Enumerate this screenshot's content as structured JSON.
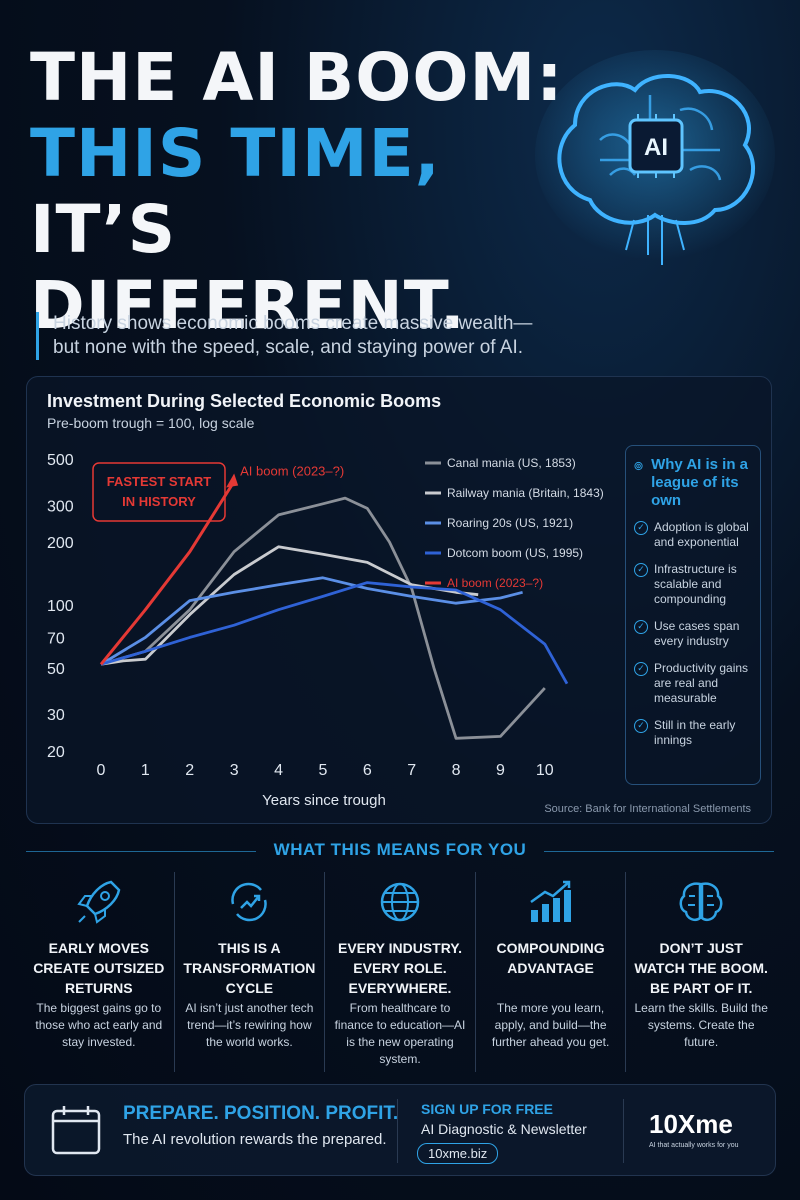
{
  "headline": {
    "line1": "THE AI BOOM:",
    "line2": "THIS TIME,",
    "line3": "IT’S DIFFERENT."
  },
  "brain_label": "AI",
  "subtitle": {
    "line1": "History shows economic booms create massive wealth—",
    "line2": "but none with the speed, scale, and staying power of AI."
  },
  "chart_data": {
    "type": "line",
    "title": "Investment During Selected Economic Booms",
    "subtitle": "Pre-boom trough = 100, log scale",
    "xlabel": "Years since trough",
    "ylabel": "",
    "y_scale": "log",
    "x_ticks": [
      0,
      1,
      2,
      3,
      4,
      5,
      6,
      7,
      8,
      9,
      10
    ],
    "y_ticks": [
      20,
      30,
      50,
      70,
      100,
      200,
      300,
      500
    ],
    "xlim": [
      0,
      10.5
    ],
    "ylim": [
      20,
      500
    ],
    "grid": false,
    "legend_position": "top-right",
    "series": [
      {
        "name": "Canal mania (US, 1853)",
        "color": "#8b9098",
        "x": [
          0,
          1,
          2,
          3,
          4,
          5,
          5.5,
          6,
          6.5,
          7,
          7.5,
          8,
          9,
          10
        ],
        "y": [
          52,
          60,
          95,
          180,
          270,
          305,
          325,
          290,
          200,
          120,
          50,
          23,
          23.5,
          40
        ]
      },
      {
        "name": "Railway mania (Britain, 1843)",
        "color": "#c9cbcf",
        "x": [
          0,
          0.5,
          1,
          2,
          3,
          4,
          5,
          6,
          7,
          8,
          8.5
        ],
        "y": [
          52,
          54,
          55,
          90,
          140,
          190,
          175,
          160,
          125,
          115,
          112
        ]
      },
      {
        "name": "Roaring 20s (US, 1921)",
        "color": "#5b8fe6",
        "x": [
          0,
          1,
          2,
          3,
          4,
          5,
          6,
          7,
          8,
          9,
          9.5
        ],
        "y": [
          52,
          70,
          105,
          115,
          125,
          135,
          120,
          110,
          102,
          108,
          115
        ]
      },
      {
        "name": "Dotcom boom (US, 1995)",
        "color": "#2f62d6",
        "x": [
          0,
          1,
          2,
          3,
          4,
          5,
          6,
          7,
          8,
          9,
          10,
          10.5
        ],
        "y": [
          52,
          60,
          70,
          80,
          95,
          110,
          128,
          122,
          118,
          95,
          65,
          42
        ]
      },
      {
        "name": "AI boom (2023–?)",
        "color": "#e53935",
        "x": [
          0,
          1,
          2,
          3
        ],
        "y": [
          52,
          95,
          180,
          390
        ]
      }
    ],
    "annotations": {
      "callout": "FASTEST START\nIN HISTORY",
      "ai_label": "AI boom (2023–?)"
    }
  },
  "why": {
    "title": "Why AI is in a league of its own",
    "items": [
      "Adoption is global and exponential",
      "Infrastructure is scalable and compounding",
      "Use cases span every industry",
      "Productivity gains are real and measurable",
      "Still in the early innings"
    ]
  },
  "source": "Source: Bank for International Settlements",
  "section_title": "WHAT THIS MEANS FOR YOU",
  "columns": [
    {
      "icon": "rocket-icon",
      "head": "EARLY MOVES CREATE OUTSIZED RETURNS",
      "body": "The biggest gains go to those who act early and stay invested."
    },
    {
      "icon": "cycle-arrow-icon",
      "head": "THIS IS A TRANSFORMATION CYCLE",
      "body": "AI isn’t just another tech trend—it’s rewiring how the world works."
    },
    {
      "icon": "globe-icon",
      "head": "EVERY INDUSTRY. EVERY ROLE. EVERYWHERE.",
      "body": "From healthcare to finance to education—AI is the new operating system."
    },
    {
      "icon": "growth-chart-icon",
      "head": "COMPOUNDING ADVANTAGE",
      "body": "The more you learn, apply, and build—the further ahead you get."
    },
    {
      "icon": "brain-icon",
      "head": "DON’T JUST WATCH THE BOOM. BE PART OF IT.",
      "body": "Learn the skills. Build the systems. Create the future."
    }
  ],
  "cta": {
    "headline": "PREPARE. POSITION. PROFIT.",
    "subline": "The AI revolution rewards the prepared.",
    "signup_title": "SIGN UP FOR FREE",
    "signup_sub": "AI Diagnostic & Newsletter",
    "link": "10xme.biz",
    "brand": "10Xme",
    "tagline": "AI that actually works for you"
  },
  "colors": {
    "accent": "#2fa3e6",
    "ai_red": "#e53935",
    "background": "#06101f"
  }
}
